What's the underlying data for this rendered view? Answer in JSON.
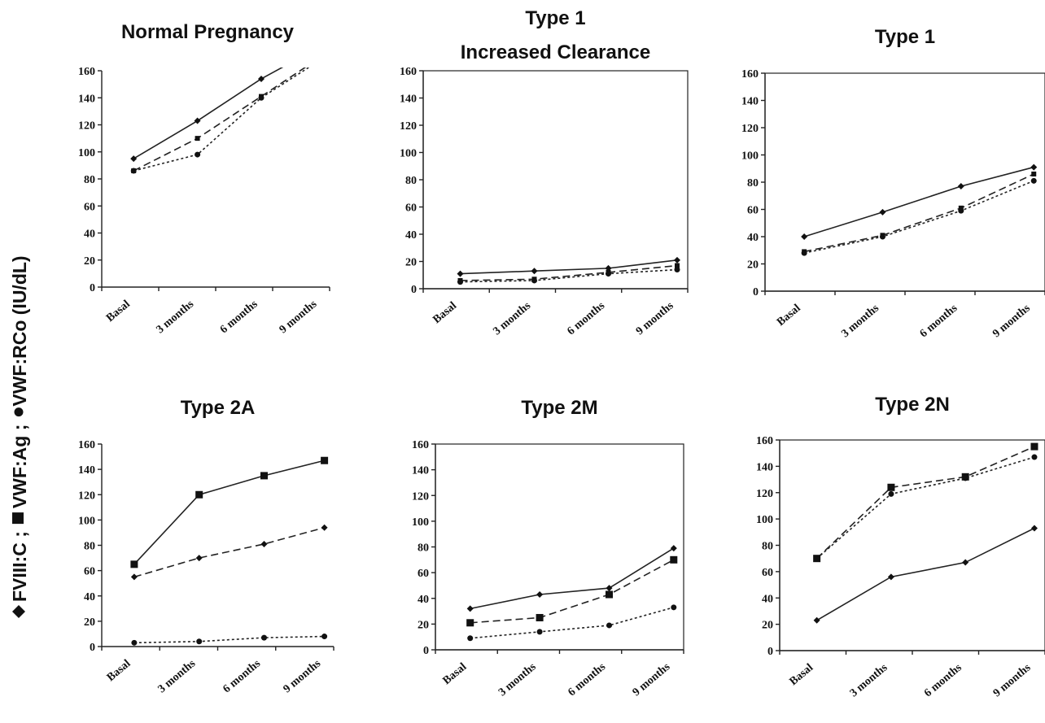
{
  "y_axis_label": {
    "parts": [
      {
        "marker": "diamond",
        "text": "FVIII:C ;"
      },
      {
        "marker": "square",
        "text": "VWF:Ag ;"
      },
      {
        "marker": "circle",
        "text": "VWF:RCo (IU/dL)"
      }
    ]
  },
  "colors": {
    "line": "#222222",
    "marker": "#111111",
    "background": "#ffffff"
  },
  "chart_data": [
    {
      "type": "line",
      "title": [
        "Normal Pregnancy"
      ],
      "categories": [
        "Basal",
        "3 months",
        "6 months",
        "9 months"
      ],
      "ylim": [
        0,
        160
      ],
      "yticks": [
        0,
        20,
        40,
        60,
        80,
        100,
        120,
        140,
        160
      ],
      "frame": false,
      "series": [
        {
          "marker": "diamond",
          "dash": "solid",
          "values": [
            95,
            123,
            154,
            178
          ]
        },
        {
          "marker": "square",
          "dash": "dashed",
          "values": [
            86,
            110,
            141,
            170
          ]
        },
        {
          "marker": "circle",
          "dash": "dotted",
          "values": [
            86,
            98,
            140,
            168
          ]
        }
      ]
    },
    {
      "type": "line",
      "title": [
        "Type 1",
        "Increased  Clearance"
      ],
      "categories": [
        "Basal",
        "3 months",
        "6 months",
        "9 months"
      ],
      "ylim": [
        0,
        160
      ],
      "yticks": [
        0,
        20,
        40,
        60,
        80,
        100,
        120,
        140,
        160
      ],
      "frame": true,
      "series": [
        {
          "marker": "diamond",
          "dash": "solid",
          "values": [
            11,
            13,
            15,
            21
          ]
        },
        {
          "marker": "square",
          "dash": "dashed",
          "values": [
            6,
            7,
            12,
            17
          ]
        },
        {
          "marker": "circle",
          "dash": "dotted",
          "values": [
            5,
            6,
            11,
            14
          ]
        }
      ]
    },
    {
      "type": "line",
      "title": [
        "Type 1"
      ],
      "categories": [
        "Basal",
        "3 months",
        "6 months",
        "9 months"
      ],
      "ylim": [
        0,
        160
      ],
      "yticks": [
        0,
        20,
        40,
        60,
        80,
        100,
        120,
        140,
        160
      ],
      "frame": true,
      "series": [
        {
          "marker": "diamond",
          "dash": "solid",
          "values": [
            40,
            58,
            77,
            91
          ]
        },
        {
          "marker": "square",
          "dash": "dashed",
          "values": [
            29,
            41,
            61,
            86
          ]
        },
        {
          "marker": "circle",
          "dash": "dotted",
          "values": [
            28,
            40,
            59,
            81
          ]
        }
      ]
    },
    {
      "type": "line",
      "title": [
        "Type 2A"
      ],
      "categories": [
        "Basal",
        "3 months",
        "6 months",
        "9 months"
      ],
      "ylim": [
        0,
        160
      ],
      "yticks": [
        0,
        20,
        40,
        60,
        80,
        100,
        120,
        140,
        160
      ],
      "frame": false,
      "series": [
        {
          "marker": "square",
          "dash": "solid",
          "values": [
            65,
            120,
            135,
            147
          ]
        },
        {
          "marker": "diamond",
          "dash": "dashed",
          "values": [
            55,
            70,
            81,
            94
          ]
        },
        {
          "marker": "circle",
          "dash": "dotted",
          "values": [
            3,
            4,
            7,
            8
          ]
        }
      ]
    },
    {
      "type": "line",
      "title": [
        "Type 2M"
      ],
      "categories": [
        "Basal",
        "3 months",
        "6 months",
        "9 months"
      ],
      "ylim": [
        0,
        160
      ],
      "yticks": [
        0,
        20,
        40,
        60,
        80,
        100,
        120,
        140,
        160
      ],
      "frame": true,
      "series": [
        {
          "marker": "diamond",
          "dash": "solid",
          "values": [
            32,
            43,
            48,
            79
          ]
        },
        {
          "marker": "square",
          "dash": "dashed",
          "values": [
            21,
            25,
            43,
            70
          ]
        },
        {
          "marker": "circle",
          "dash": "dotted",
          "values": [
            9,
            14,
            19,
            33
          ]
        }
      ]
    },
    {
      "type": "line",
      "title": [
        "Type 2N"
      ],
      "categories": [
        "Basal",
        "3 months",
        "6 months",
        "9 months"
      ],
      "ylim": [
        0,
        160
      ],
      "yticks": [
        0,
        20,
        40,
        60,
        80,
        100,
        120,
        140,
        160
      ],
      "frame": true,
      "series": [
        {
          "marker": "square",
          "dash": "dashed",
          "values": [
            70,
            124,
            132,
            155
          ]
        },
        {
          "marker": "circle",
          "dash": "dotted",
          "values": [
            70,
            119,
            131,
            147
          ]
        },
        {
          "marker": "diamond",
          "dash": "solid",
          "values": [
            23,
            56,
            67,
            93
          ]
        }
      ]
    }
  ]
}
